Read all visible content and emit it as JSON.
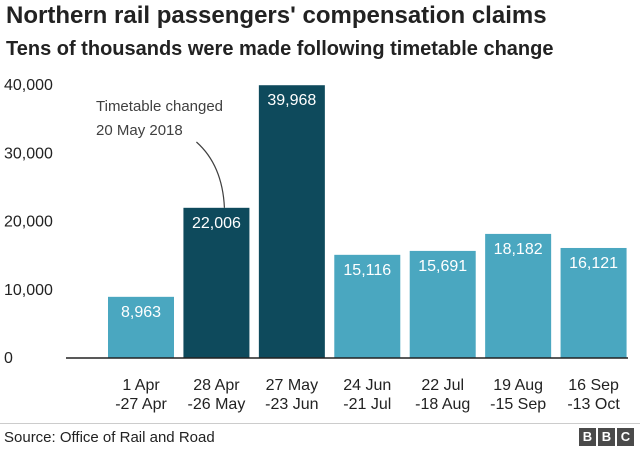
{
  "chart_data": {
    "type": "bar",
    "title": "Northern rail passengers' compensation claims",
    "subtitle": "Tens of thousands were made following timetable change",
    "categories": [
      [
        "1 Apr",
        "-27 Apr"
      ],
      [
        "28 Apr",
        "-26 May"
      ],
      [
        "27 May",
        "-23 Jun"
      ],
      [
        "24 Jun",
        "-21 Jul"
      ],
      [
        "22 Jul",
        "-18 Aug"
      ],
      [
        "19 Aug",
        "-15 Sep"
      ],
      [
        "16 Sep",
        "-13 Oct"
      ]
    ],
    "values": [
      8963,
      22006,
      39968,
      15116,
      15691,
      18182,
      16121
    ],
    "data_labels": [
      "8,963",
      "22,006",
      "39,968",
      "15,116",
      "15,691",
      "18,182",
      "16,121"
    ],
    "highlighted": [
      false,
      true,
      true,
      false,
      false,
      false,
      false
    ],
    "ylim": [
      0,
      40000
    ],
    "yticks": [
      0,
      10000,
      20000,
      30000,
      40000
    ],
    "ytick_labels": [
      "0",
      "10,000",
      "20,000",
      "30,000",
      "40,000"
    ],
    "xlabel": "",
    "ylabel": "",
    "grid": false,
    "annotation": {
      "lines": [
        "Timetable changed",
        "20 May 2018"
      ],
      "target_index": 1
    },
    "colors": {
      "normal": "#4aa7c0",
      "highlight": "#0e4a5c",
      "axis": "#222222"
    }
  },
  "footer": {
    "source": "Source: Office of Rail and Road",
    "logo_letters": [
      "B",
      "B",
      "C"
    ]
  }
}
